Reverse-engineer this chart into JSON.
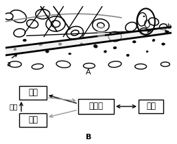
{
  "title_A": "A",
  "title_B": "B",
  "label_a": "a",
  "label_b": "b",
  "box_xuanjiang": "血浆",
  "box_zuzhiye": "组织液",
  "box_xibao": "细胞",
  "box_linba": "淡巴",
  "label_huiliu": "回流",
  "bg_color": "#ffffff",
  "cells_large": [
    [
      20,
      82,
      26,
      16,
      -15
    ],
    [
      58,
      85,
      22,
      13,
      0
    ],
    [
      22,
      60,
      18,
      11,
      5
    ],
    [
      78,
      72,
      30,
      20,
      0
    ],
    [
      78,
      72,
      14,
      9,
      0
    ],
    [
      108,
      60,
      26,
      17,
      10
    ],
    [
      108,
      60,
      12,
      7,
      10
    ],
    [
      148,
      70,
      26,
      17,
      -5
    ],
    [
      148,
      70,
      11,
      7,
      -5
    ],
    [
      170,
      55,
      20,
      13,
      0
    ],
    [
      195,
      68,
      18,
      12,
      15
    ],
    [
      215,
      62,
      14,
      9,
      0
    ],
    [
      230,
      75,
      16,
      10,
      -10
    ],
    [
      245,
      68,
      12,
      8,
      5
    ],
    [
      5,
      82,
      14,
      9,
      0
    ],
    [
      42,
      72,
      18,
      11,
      -10
    ]
  ],
  "cells_small_dots": [
    [
      30,
      50,
      5,
      3,
      0
    ],
    [
      55,
      45,
      6,
      4,
      20
    ],
    [
      85,
      45,
      5,
      3,
      0
    ],
    [
      118,
      45,
      4,
      3,
      10
    ],
    [
      140,
      42,
      6,
      4,
      -10
    ],
    [
      170,
      40,
      5,
      3,
      5
    ],
    [
      200,
      48,
      5,
      3,
      0
    ],
    [
      230,
      50,
      4,
      3,
      15
    ],
    [
      245,
      45,
      5,
      3,
      0
    ],
    [
      15,
      38,
      4,
      3,
      0
    ],
    [
      65,
      35,
      5,
      3,
      0
    ],
    [
      100,
      32,
      4,
      2,
      0
    ],
    [
      155,
      35,
      4,
      3,
      5
    ],
    [
      190,
      30,
      4,
      3,
      0
    ],
    [
      220,
      35,
      3,
      2,
      0
    ]
  ],
  "cells_bottom_crescent": [
    [
      15,
      18,
      20,
      8,
      0
    ],
    [
      50,
      15,
      18,
      7,
      5
    ],
    [
      90,
      18,
      22,
      9,
      -5
    ],
    [
      130,
      16,
      18,
      7,
      0
    ],
    [
      170,
      18,
      20,
      8,
      5
    ],
    [
      210,
      15,
      18,
      7,
      0
    ],
    [
      248,
      18,
      14,
      6,
      0
    ]
  ]
}
